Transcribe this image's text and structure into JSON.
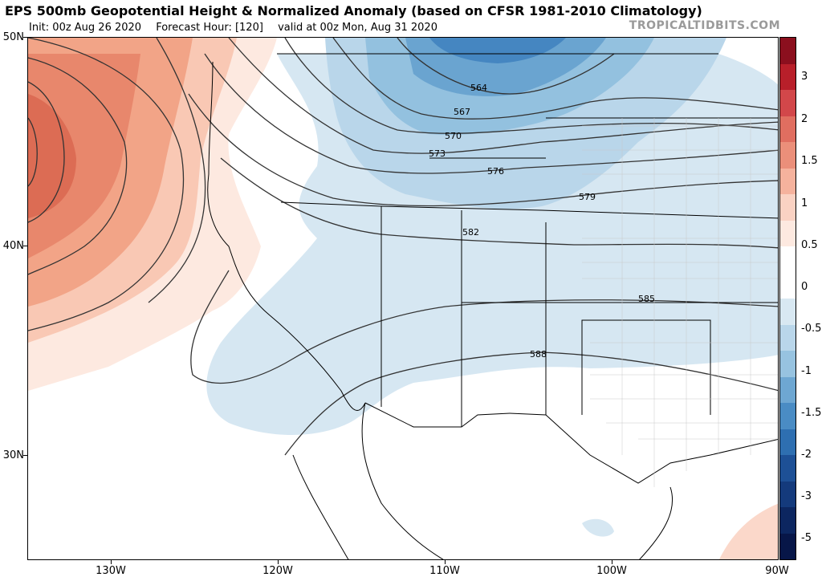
{
  "header": {
    "title": "EPS 500mb Geopotential Height & Normalized Anomaly (based on CFSR 1981-2010 Climatology)",
    "init": "Init: 00z Aug 26 2020",
    "forecast_hour": "Forecast Hour: [120]",
    "valid": "valid at 00z Mon, Aug 31 2020",
    "watermark": "TROPICALTIDBITS.COM"
  },
  "map": {
    "lat_labels": [
      "50N",
      "40N",
      "30N"
    ],
    "lon_labels": [
      "130W",
      "120W",
      "110W",
      "100W",
      "90W"
    ],
    "contour_labels": [
      "564",
      "567",
      "570",
      "573",
      "576",
      "579",
      "582",
      "585",
      "588"
    ]
  },
  "colorbar": {
    "labels": [
      "3",
      "2",
      "1.5",
      "1",
      "0.5",
      "0",
      "-0.5",
      "-1",
      "-1.5",
      "-2",
      "-3",
      "-5"
    ],
    "colors": [
      "#8b0f1e",
      "#b81f2a",
      "#d2474a",
      "#e06e60",
      "#eb8f7a",
      "#f5b29d",
      "#fad2c3",
      "#fde9e0",
      "#ffffff",
      "#ffffff",
      "#d8e8f2",
      "#b9d6ea",
      "#97c3e0",
      "#6ea7d2",
      "#4a8cc4",
      "#2e6fb1",
      "#1d5096",
      "#143a7c",
      "#0c2660",
      "#071648"
    ]
  }
}
